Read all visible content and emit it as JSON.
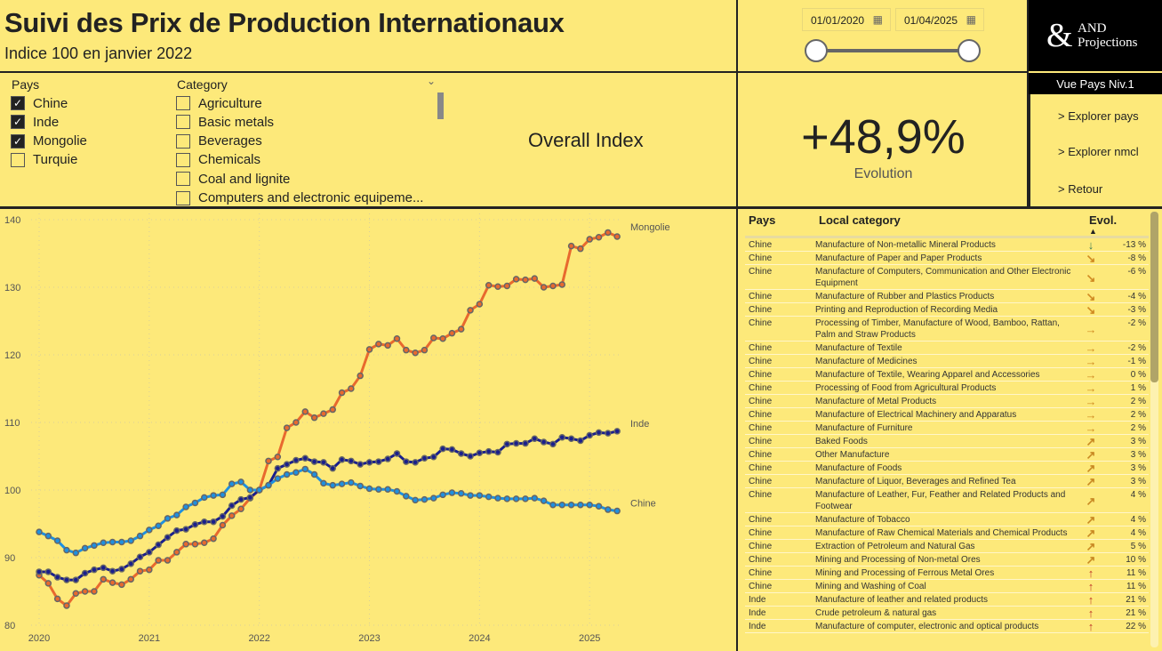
{
  "header": {
    "title": "Suivi des Prix de Production Internationaux",
    "subtitle": "Indice 100 en janvier 2022"
  },
  "date_slicer": {
    "start": "01/01/2020",
    "end": "01/04/2025",
    "range_fraction": [
      0,
      1
    ]
  },
  "logo": {
    "symbol": "&",
    "line1": "AND",
    "line2": "Projections"
  },
  "filters": {
    "pays": {
      "title": "Pays",
      "items": [
        {
          "label": "Chine",
          "checked": true
        },
        {
          "label": "Inde",
          "checked": true
        },
        {
          "label": "Mongolie",
          "checked": true
        },
        {
          "label": "Turquie",
          "checked": false
        }
      ]
    },
    "category": {
      "title": "Category",
      "items": [
        {
          "label": "Agriculture",
          "checked": false
        },
        {
          "label": "Basic metals",
          "checked": false
        },
        {
          "label": "Beverages",
          "checked": false
        },
        {
          "label": "Chemicals",
          "checked": false
        },
        {
          "label": "Coal and lignite",
          "checked": false
        },
        {
          "label": "Computers and electronic equipeme...",
          "checked": false
        }
      ]
    }
  },
  "overall_label": "Overall Index",
  "kpi": {
    "value": "+48,9%",
    "label": "Evolution"
  },
  "nav": {
    "header": "Vue Pays Niv.1",
    "buttons": [
      "> Explorer pays",
      "> Explorer nmcl",
      "> Retour"
    ]
  },
  "table": {
    "headers": {
      "pays": "Pays",
      "category": "Local category",
      "evol": "Evol."
    },
    "rows": [
      [
        "Chine",
        "Manufacture of Non-metallic Mineral Products",
        "down",
        "-13 %"
      ],
      [
        "Chine",
        "Manufacture of Paper and Paper Products",
        "down-right",
        "-8 %"
      ],
      [
        "Chine",
        "Manufacture of Computers, Communication and Other Electronic Equipment",
        "down-right",
        "-6 %"
      ],
      [
        "Chine",
        "Manufacture of Rubber and Plastics Products",
        "down-right",
        "-4 %"
      ],
      [
        "Chine",
        "Printing and Reproduction of Recording Media",
        "down-right",
        "-3 %"
      ],
      [
        "Chine",
        "Processing of Timber, Manufacture of Wood, Bamboo, Rattan, Palm and Straw Products",
        "right",
        "-2 %"
      ],
      [
        "Chine",
        "Manufacture of Textile",
        "right",
        "-2 %"
      ],
      [
        "Chine",
        "Manufacture of Medicines",
        "right",
        "-1 %"
      ],
      [
        "Chine",
        "Manufacture of Textile, Wearing Apparel and Accessories",
        "right",
        "0 %"
      ],
      [
        "Chine",
        "Processing of Food from Agricultural Products",
        "right",
        "1 %"
      ],
      [
        "Chine",
        "Manufacture of Metal Products",
        "right",
        "2 %"
      ],
      [
        "Chine",
        "Manufacture of Electrical Machinery and Apparatus",
        "right",
        "2 %"
      ],
      [
        "Chine",
        "Manufacture of Furniture",
        "right",
        "2 %"
      ],
      [
        "Chine",
        "Baked Foods",
        "up-right",
        "3 %"
      ],
      [
        "Chine",
        "Other Manufacture",
        "up-right",
        "3 %"
      ],
      [
        "Chine",
        "Manufacture of Foods",
        "up-right",
        "3 %"
      ],
      [
        "Chine",
        "Manufacture of Liquor, Beverages and Refined Tea",
        "up-right",
        "3 %"
      ],
      [
        "Chine",
        "Manufacture of Leather, Fur, Feather and Related Products and Footwear",
        "up-right",
        "4 %"
      ],
      [
        "Chine",
        "Manufacture of Tobacco",
        "up-right",
        "4 %"
      ],
      [
        "Chine",
        "Manufacture of Raw Chemical Materials and Chemical Products",
        "up-right",
        "4 %"
      ],
      [
        "Chine",
        "Extraction of Petroleum and Natural Gas",
        "up-right",
        "5 %"
      ],
      [
        "Chine",
        "Mining and Processing of Non-metal Ores",
        "up-right",
        "10 %"
      ],
      [
        "Chine",
        "Mining and Processing of Ferrous Metal Ores",
        "up",
        "11 %"
      ],
      [
        "Chine",
        "Mining and Washing of Coal",
        "up",
        "11 %"
      ],
      [
        "Inde",
        "Manufacture of leather and related products",
        "up",
        "21 %"
      ],
      [
        "Inde",
        "Crude petroleum & natural gas",
        "up",
        "21 %"
      ],
      [
        "Inde",
        "Manufacture of computer, electronic and optical products",
        "up",
        "22 %"
      ]
    ]
  },
  "icon_colors": {
    "down": "#3b7a57",
    "down-right": "#d08a22",
    "right": "#d08a22",
    "up-right": "#c98a24",
    "up": "#c0392b"
  },
  "chart_data": {
    "type": "line",
    "title": "",
    "xlabel": "",
    "ylabel": "",
    "ylim": [
      80,
      140
    ],
    "yticks": [
      "80",
      "90",
      "100",
      "110",
      "120",
      "130",
      "140"
    ],
    "xticks": [
      "2020",
      "2021",
      "2022",
      "2023",
      "2024",
      "2025"
    ],
    "x_start": "2020-01",
    "x_end": "2025-04",
    "frequency": "monthly",
    "grid": true,
    "series": [
      {
        "name": "Mongolie",
        "color": "#e8692e",
        "values": [
          87.4,
          86.2,
          83.9,
          82.9,
          84.7,
          85,
          85,
          86.8,
          86.3,
          86,
          86.8,
          88,
          88.2,
          89.6,
          89.6,
          90.8,
          92,
          92,
          92.2,
          92.8,
          94.8,
          96.2,
          97.2,
          98.8,
          100,
          104.3,
          104.9,
          109.2,
          110,
          111.6,
          110.7,
          111.3,
          111.9,
          114.4,
          115,
          116.9,
          120.8,
          121.6,
          121.4,
          122.4,
          120.7,
          120.3,
          120.7,
          122.5,
          122.4,
          123.2,
          123.8,
          126.6,
          127.5,
          130.3,
          130.1,
          130.2,
          131.2,
          131.1,
          131.3,
          130,
          130.2,
          130.4,
          136.1,
          135.7,
          137.1,
          137.4,
          138.1,
          137.5
        ]
      },
      {
        "name": "Inde",
        "color": "#1a1f8c",
        "values": [
          87.9,
          87.9,
          87.1,
          86.7,
          86.7,
          87.7,
          88.2,
          88.5,
          88,
          88.3,
          89.1,
          90.1,
          90.8,
          91.9,
          93,
          94,
          94.2,
          94.9,
          95.3,
          95.3,
          96.1,
          97.7,
          98.6,
          98.9,
          100,
          100.7,
          103.2,
          103.8,
          104.4,
          104.7,
          104.2,
          104.1,
          103.2,
          104.5,
          104.3,
          103.8,
          104.1,
          104.2,
          104.6,
          105.4,
          104.2,
          104.1,
          104.7,
          104.9,
          106.1,
          106,
          105.4,
          105,
          105.5,
          105.7,
          105.6,
          106.8,
          106.9,
          106.9,
          107.6,
          107.1,
          106.8,
          107.8,
          107.6,
          107.3,
          108.1,
          108.5,
          108.4,
          108.7
        ]
      },
      {
        "name": "Chine",
        "color": "#1e90e0",
        "values": [
          93.8,
          93.2,
          92.5,
          91.1,
          90.7,
          91.4,
          91.8,
          92.2,
          92.3,
          92.3,
          92.5,
          93.2,
          94.1,
          94.7,
          95.8,
          96.3,
          97.5,
          98.1,
          98.9,
          99.2,
          99.3,
          100.9,
          101.2,
          100,
          100,
          100.7,
          101.7,
          102.3,
          102.6,
          103.1,
          102.3,
          101,
          100.7,
          100.9,
          101.1,
          100.6,
          100.2,
          100.1,
          100.1,
          99.8,
          99.1,
          98.5,
          98.6,
          98.8,
          99.3,
          99.6,
          99.5,
          99.2,
          99.2,
          99,
          98.8,
          98.7,
          98.7,
          98.7,
          98.8,
          98.4,
          97.8,
          97.8,
          97.8,
          97.8,
          97.8,
          97.6,
          97.1,
          96.9
        ]
      }
    ]
  }
}
